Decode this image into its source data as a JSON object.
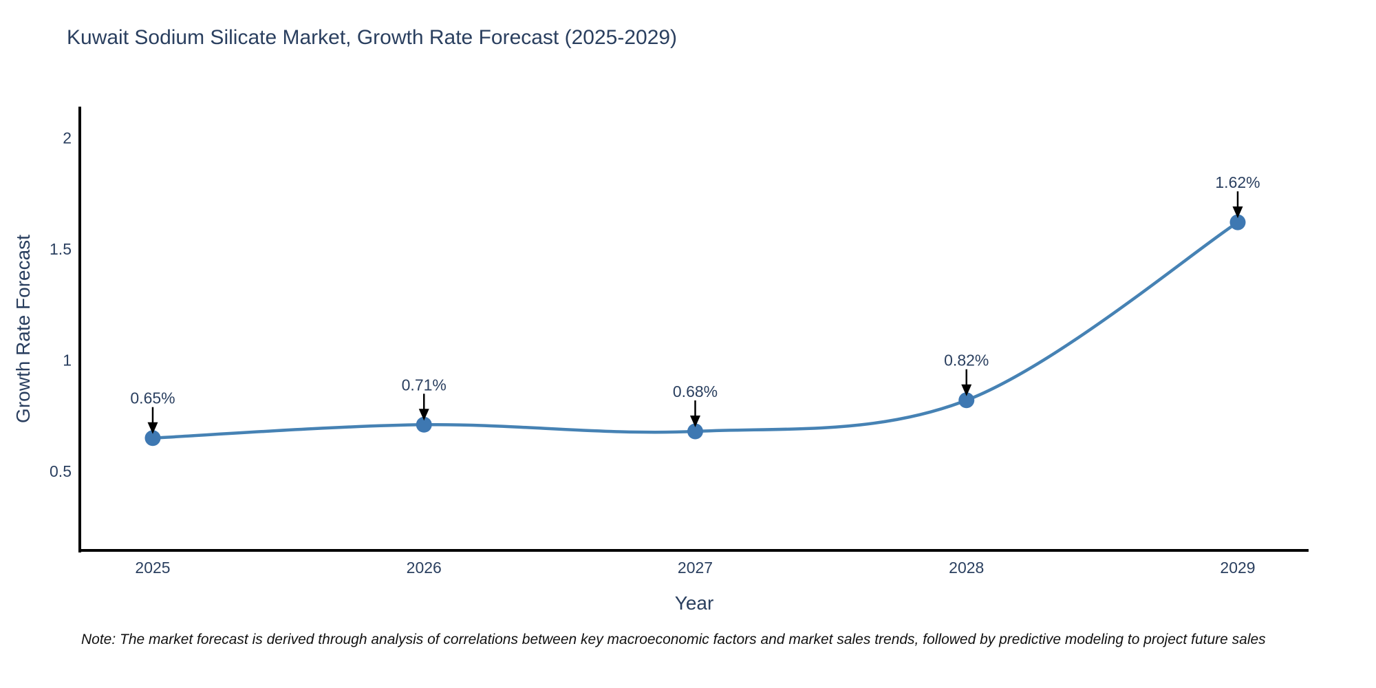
{
  "title": "Kuwait Sodium Silicate Market, Growth Rate Forecast (2025-2029)",
  "note": "Note: The market forecast is derived through analysis of correlations between key macroeconomic factors and market sales trends, followed by predictive modeling to project future sales",
  "chart_data": {
    "type": "line",
    "title": "Kuwait Sodium Silicate Market, Growth Rate Forecast (2025-2029)",
    "xlabel": "Year",
    "ylabel": "Growth Rate Forecast",
    "categories": [
      "2025",
      "2026",
      "2027",
      "2028",
      "2029"
    ],
    "values": [
      0.65,
      0.71,
      0.68,
      0.82,
      1.62
    ],
    "point_labels": [
      "0.65%",
      "0.71%",
      "0.68%",
      "0.82%",
      "1.62%"
    ],
    "yticks": [
      "0.5",
      "1",
      "1.5",
      "2"
    ],
    "ytick_values": [
      0.5,
      1,
      1.5,
      2
    ],
    "ylim": [
      0.148,
      2.14
    ],
    "grid": false,
    "legend_position": "none",
    "line_shape": "spline",
    "annotation_style": "arrow-down-to-point",
    "colors": {
      "line": "#4682b4",
      "marker": "#3e78b2",
      "axis_line": "#000000",
      "text": "#2a3f5f",
      "annotation_text": "#2a3f5f",
      "annotation_arrow": "#000000",
      "note_text": "#111111",
      "background": "#ffffff"
    }
  }
}
